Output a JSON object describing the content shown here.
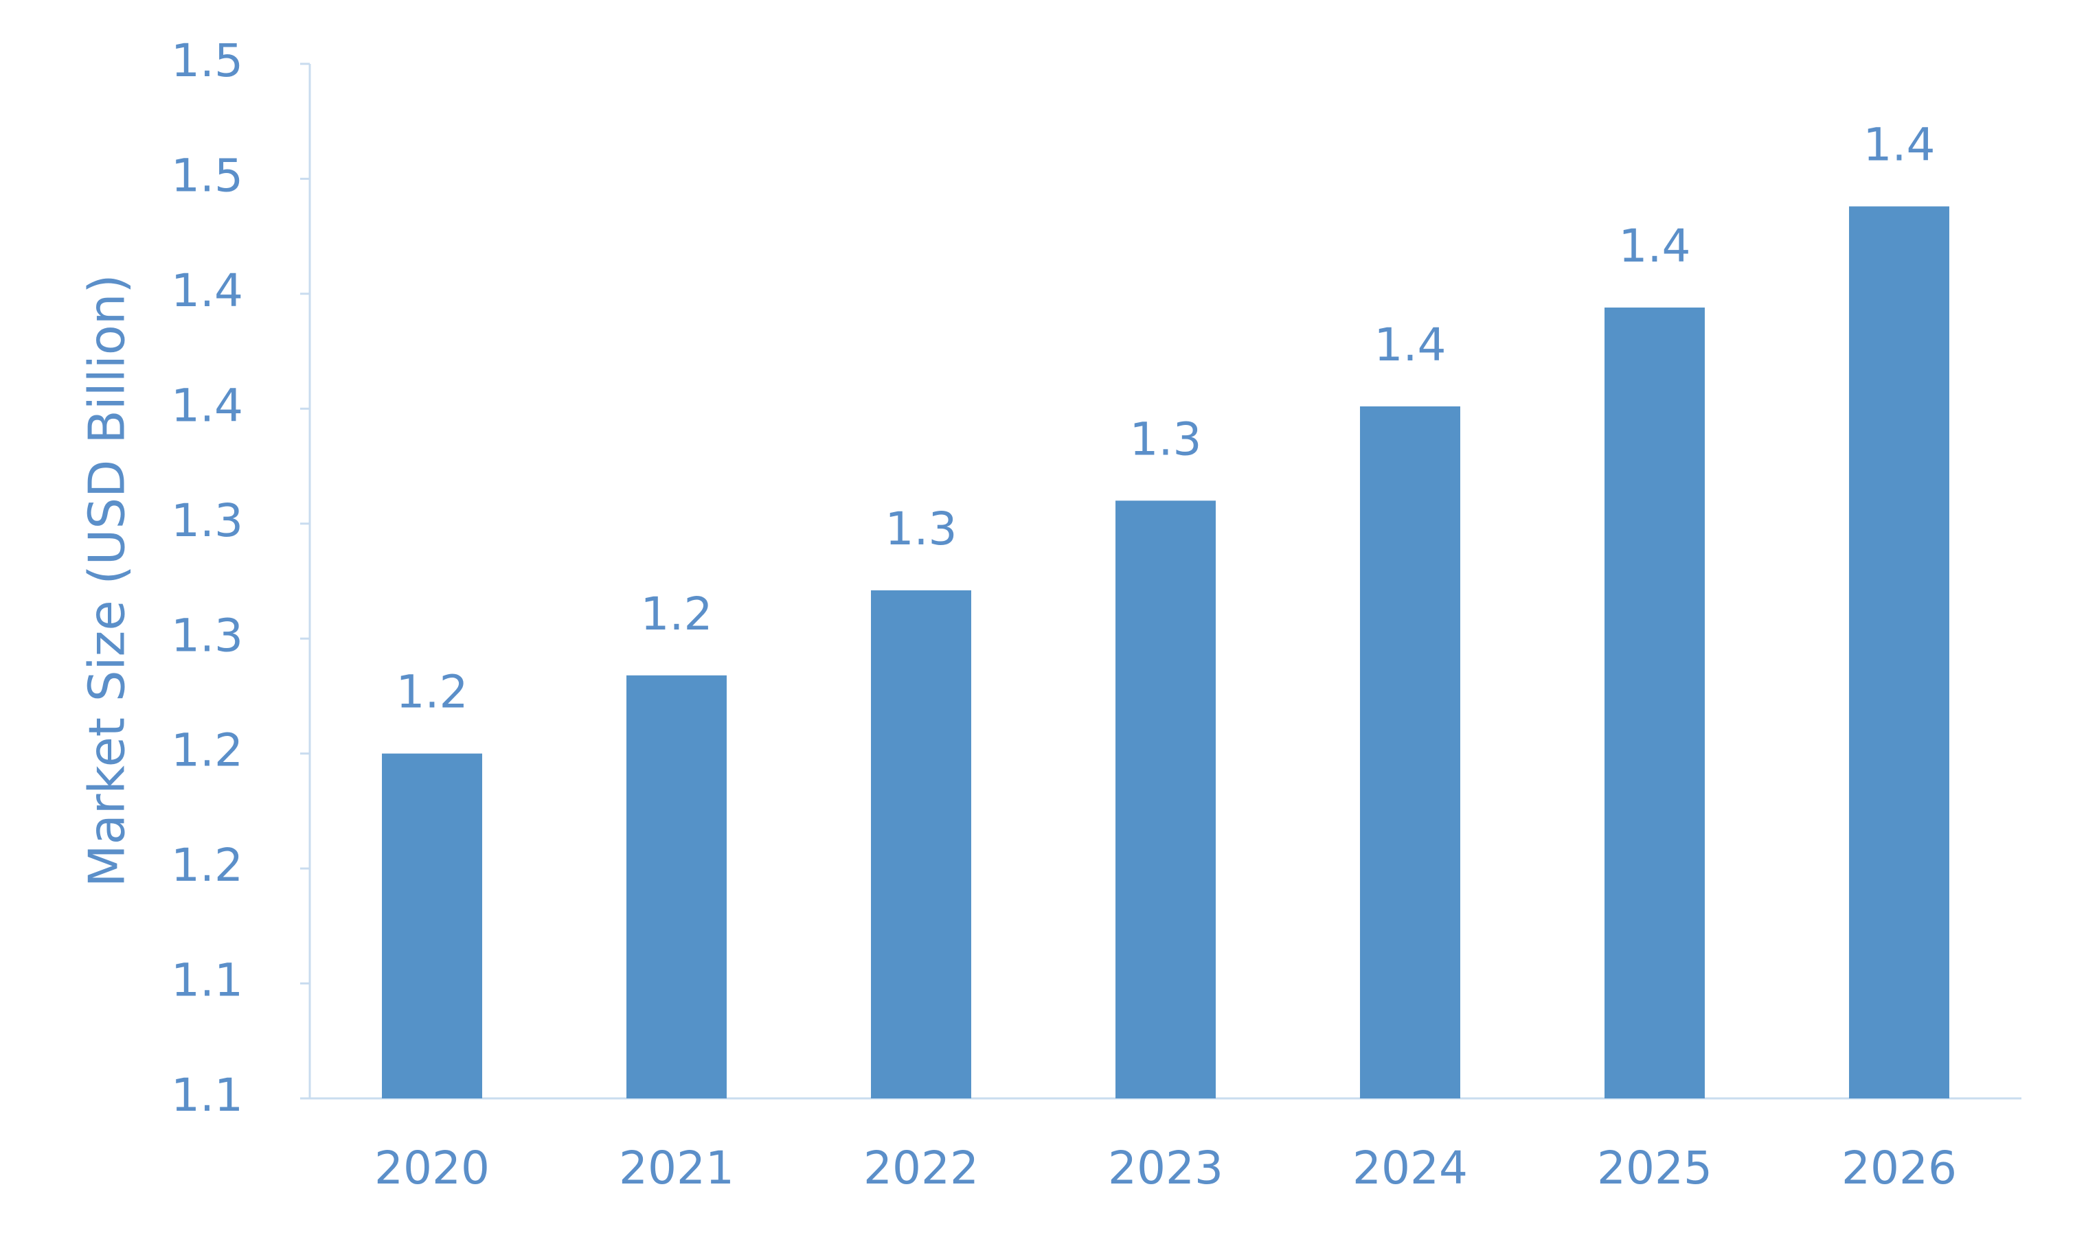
{
  "chart_data": {
    "type": "bar",
    "y_axis_label": "Market Size (USD Billion)",
    "categories": [
      "2020",
      "2021",
      "2022",
      "2023",
      "2024",
      "2025",
      "2026"
    ],
    "values": [
      1.2,
      1.234,
      1.271,
      1.31,
      1.351,
      1.394,
      1.438
    ],
    "value_labels": [
      "1.2",
      "1.2",
      "1.3",
      "1.3",
      "1.4",
      "1.4",
      "1.4"
    ],
    "color": "#5592c8",
    "ylim": [
      1.05,
      1.5
    ],
    "yticks": [
      {
        "value": 1.05,
        "label": "1.1"
      },
      {
        "value": 1.1,
        "label": "1.1"
      },
      {
        "value": 1.15,
        "label": "1.2"
      },
      {
        "value": 1.2,
        "label": "1.2"
      },
      {
        "value": 1.25,
        "label": "1.3"
      },
      {
        "value": 1.3,
        "label": "1.3"
      },
      {
        "value": 1.35,
        "label": "1.4"
      },
      {
        "value": 1.4,
        "label": "1.4"
      },
      {
        "value": 1.45,
        "label": "1.5"
      },
      {
        "value": 1.5,
        "label": "1.5"
      }
    ],
    "grid": false
  }
}
